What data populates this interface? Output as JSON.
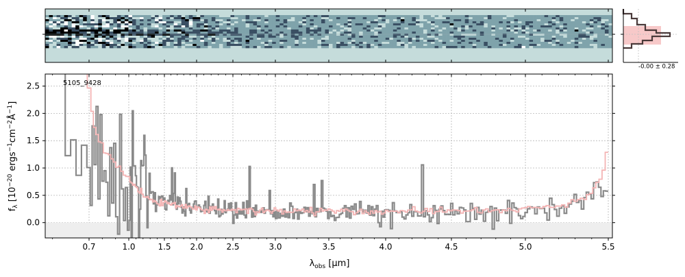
{
  "chart_data": [
    {
      "type": "heatmap",
      "description_panel": "2d-spectrum",
      "colormap": [
        "#ffffff",
        "#c5dcdb",
        "#7fa3ab",
        "#3a4f63",
        "#000000"
      ],
      "background_color": "#c5dcdb",
      "y_tick_rows": 1
    },
    {
      "type": "line",
      "series": [
        {
          "name": "",
          "style": "step",
          "color": "#f4b4b4",
          "x": [
            0.62,
            0.65,
            0.68,
            0.7,
            0.72,
            0.75,
            0.78,
            0.8,
            0.85,
            0.9,
            0.95,
            1.0,
            1.05,
            1.1,
            1.2,
            1.3,
            1.4,
            1.5,
            1.7,
            2.0,
            2.2,
            2.5,
            2.8,
            3.0,
            3.3,
            3.5,
            3.8,
            4.0,
            4.3,
            4.5,
            4.8,
            5.0,
            5.1,
            5.2,
            5.3,
            5.35,
            5.4,
            5.45,
            5.48,
            5.5
          ],
          "y": [
            3.1,
            2.9,
            2.7,
            2.35,
            1.9,
            1.6,
            1.45,
            1.35,
            1.2,
            1.05,
            0.9,
            0.8,
            0.7,
            0.62,
            0.5,
            0.42,
            0.38,
            0.35,
            0.3,
            0.27,
            0.25,
            0.23,
            0.22,
            0.22,
            0.21,
            0.21,
            0.2,
            0.2,
            0.2,
            0.21,
            0.22,
            0.25,
            0.28,
            0.32,
            0.38,
            0.45,
            0.6,
            0.8,
            1.2,
            2.1
          ]
        },
        {
          "name": "",
          "style": "step-noisy",
          "color": "#8a8a8a",
          "x_range": [
            0.62,
            5.5
          ],
          "trend_x": [
            0.62,
            0.7,
            0.8,
            0.9,
            1.0,
            1.1,
            1.2,
            1.4,
            1.6,
            2.0,
            2.5,
            3.0,
            3.5,
            4.0,
            4.5,
            5.0,
            5.2,
            5.35,
            5.45,
            5.5
          ],
          "trend_y": [
            1.6,
            1.3,
            1.1,
            0.95,
            0.8,
            0.65,
            0.55,
            0.42,
            0.35,
            0.28,
            0.22,
            0.2,
            0.18,
            0.18,
            0.19,
            0.2,
            0.25,
            0.35,
            0.55,
            0.7
          ]
        }
      ],
      "xlabel": "λobs [μm]",
      "ylabel": "fλ [10−20 ergs−1cm−2Å−1]",
      "xticks": [
        "0.7",
        "1.0",
        "1.5",
        "2.0",
        "2.5",
        "3.0",
        "3.5",
        "4.0",
        "4.5",
        "5.0",
        "5.5"
      ],
      "xtick_values": [
        0.7,
        1.0,
        1.5,
        2.0,
        2.5,
        3.0,
        3.5,
        4.0,
        4.5,
        5.0,
        5.5
      ],
      "yticks": [
        "0.0",
        "0.5",
        "1.0",
        "1.5",
        "2.0",
        "2.5"
      ],
      "ytick_values": [
        0.0,
        0.5,
        1.0,
        1.5,
        2.0,
        2.5
      ],
      "xlim": [
        0.58,
        5.52
      ],
      "ylim": [
        -0.28,
        2.72
      ],
      "annotation": "5105_9428",
      "grid": true
    },
    {
      "type": "line",
      "description_panel": "histogram",
      "annotation": "-0.00 ± 0.28"
    }
  ]
}
